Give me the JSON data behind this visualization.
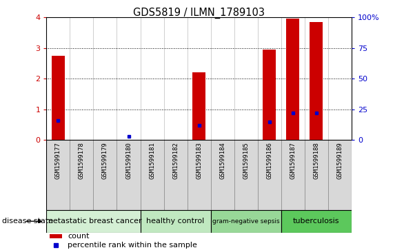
{
  "title": "GDS5819 / ILMN_1789103",
  "samples": [
    "GSM1599177",
    "GSM1599178",
    "GSM1599179",
    "GSM1599180",
    "GSM1599181",
    "GSM1599182",
    "GSM1599183",
    "GSM1599184",
    "GSM1599185",
    "GSM1599186",
    "GSM1599187",
    "GSM1599188",
    "GSM1599189"
  ],
  "counts": [
    2.75,
    0,
    0,
    0,
    0,
    0,
    2.2,
    0,
    0,
    2.95,
    3.97,
    3.85,
    0
  ],
  "percentile_ranks": [
    16,
    0,
    0,
    3,
    0,
    0,
    12,
    0,
    0,
    15,
    22,
    22,
    0
  ],
  "bar_color": "#cc0000",
  "dot_color": "#0000cc",
  "ylim_left": [
    0,
    4
  ],
  "ylim_right": [
    0,
    100
  ],
  "yticks_left": [
    0,
    1,
    2,
    3,
    4
  ],
  "yticks_right": [
    0,
    25,
    50,
    75,
    100
  ],
  "yticklabels_right": [
    "0",
    "25",
    "50",
    "75",
    "100%"
  ],
  "dotted_lines": [
    1,
    2,
    3
  ],
  "groups": [
    {
      "label": "metastatic breast cancer",
      "start": 0,
      "end": 4,
      "color": "#d4efd4"
    },
    {
      "label": "healthy control",
      "start": 4,
      "end": 7,
      "color": "#c0e8c0"
    },
    {
      "label": "gram-negative sepsis",
      "start": 7,
      "end": 10,
      "color": "#98d898"
    },
    {
      "label": "tuberculosis",
      "start": 10,
      "end": 13,
      "color": "#5cc85c"
    }
  ],
  "group_label": "disease state",
  "legend_count_color": "#cc0000",
  "legend_pct_color": "#0000cc",
  "bar_width": 0.55,
  "tick_label_fontsize": 6.5,
  "title_fontsize": 10.5,
  "col_bg_color": "#d8d8d8",
  "col_border_color": "#888888"
}
